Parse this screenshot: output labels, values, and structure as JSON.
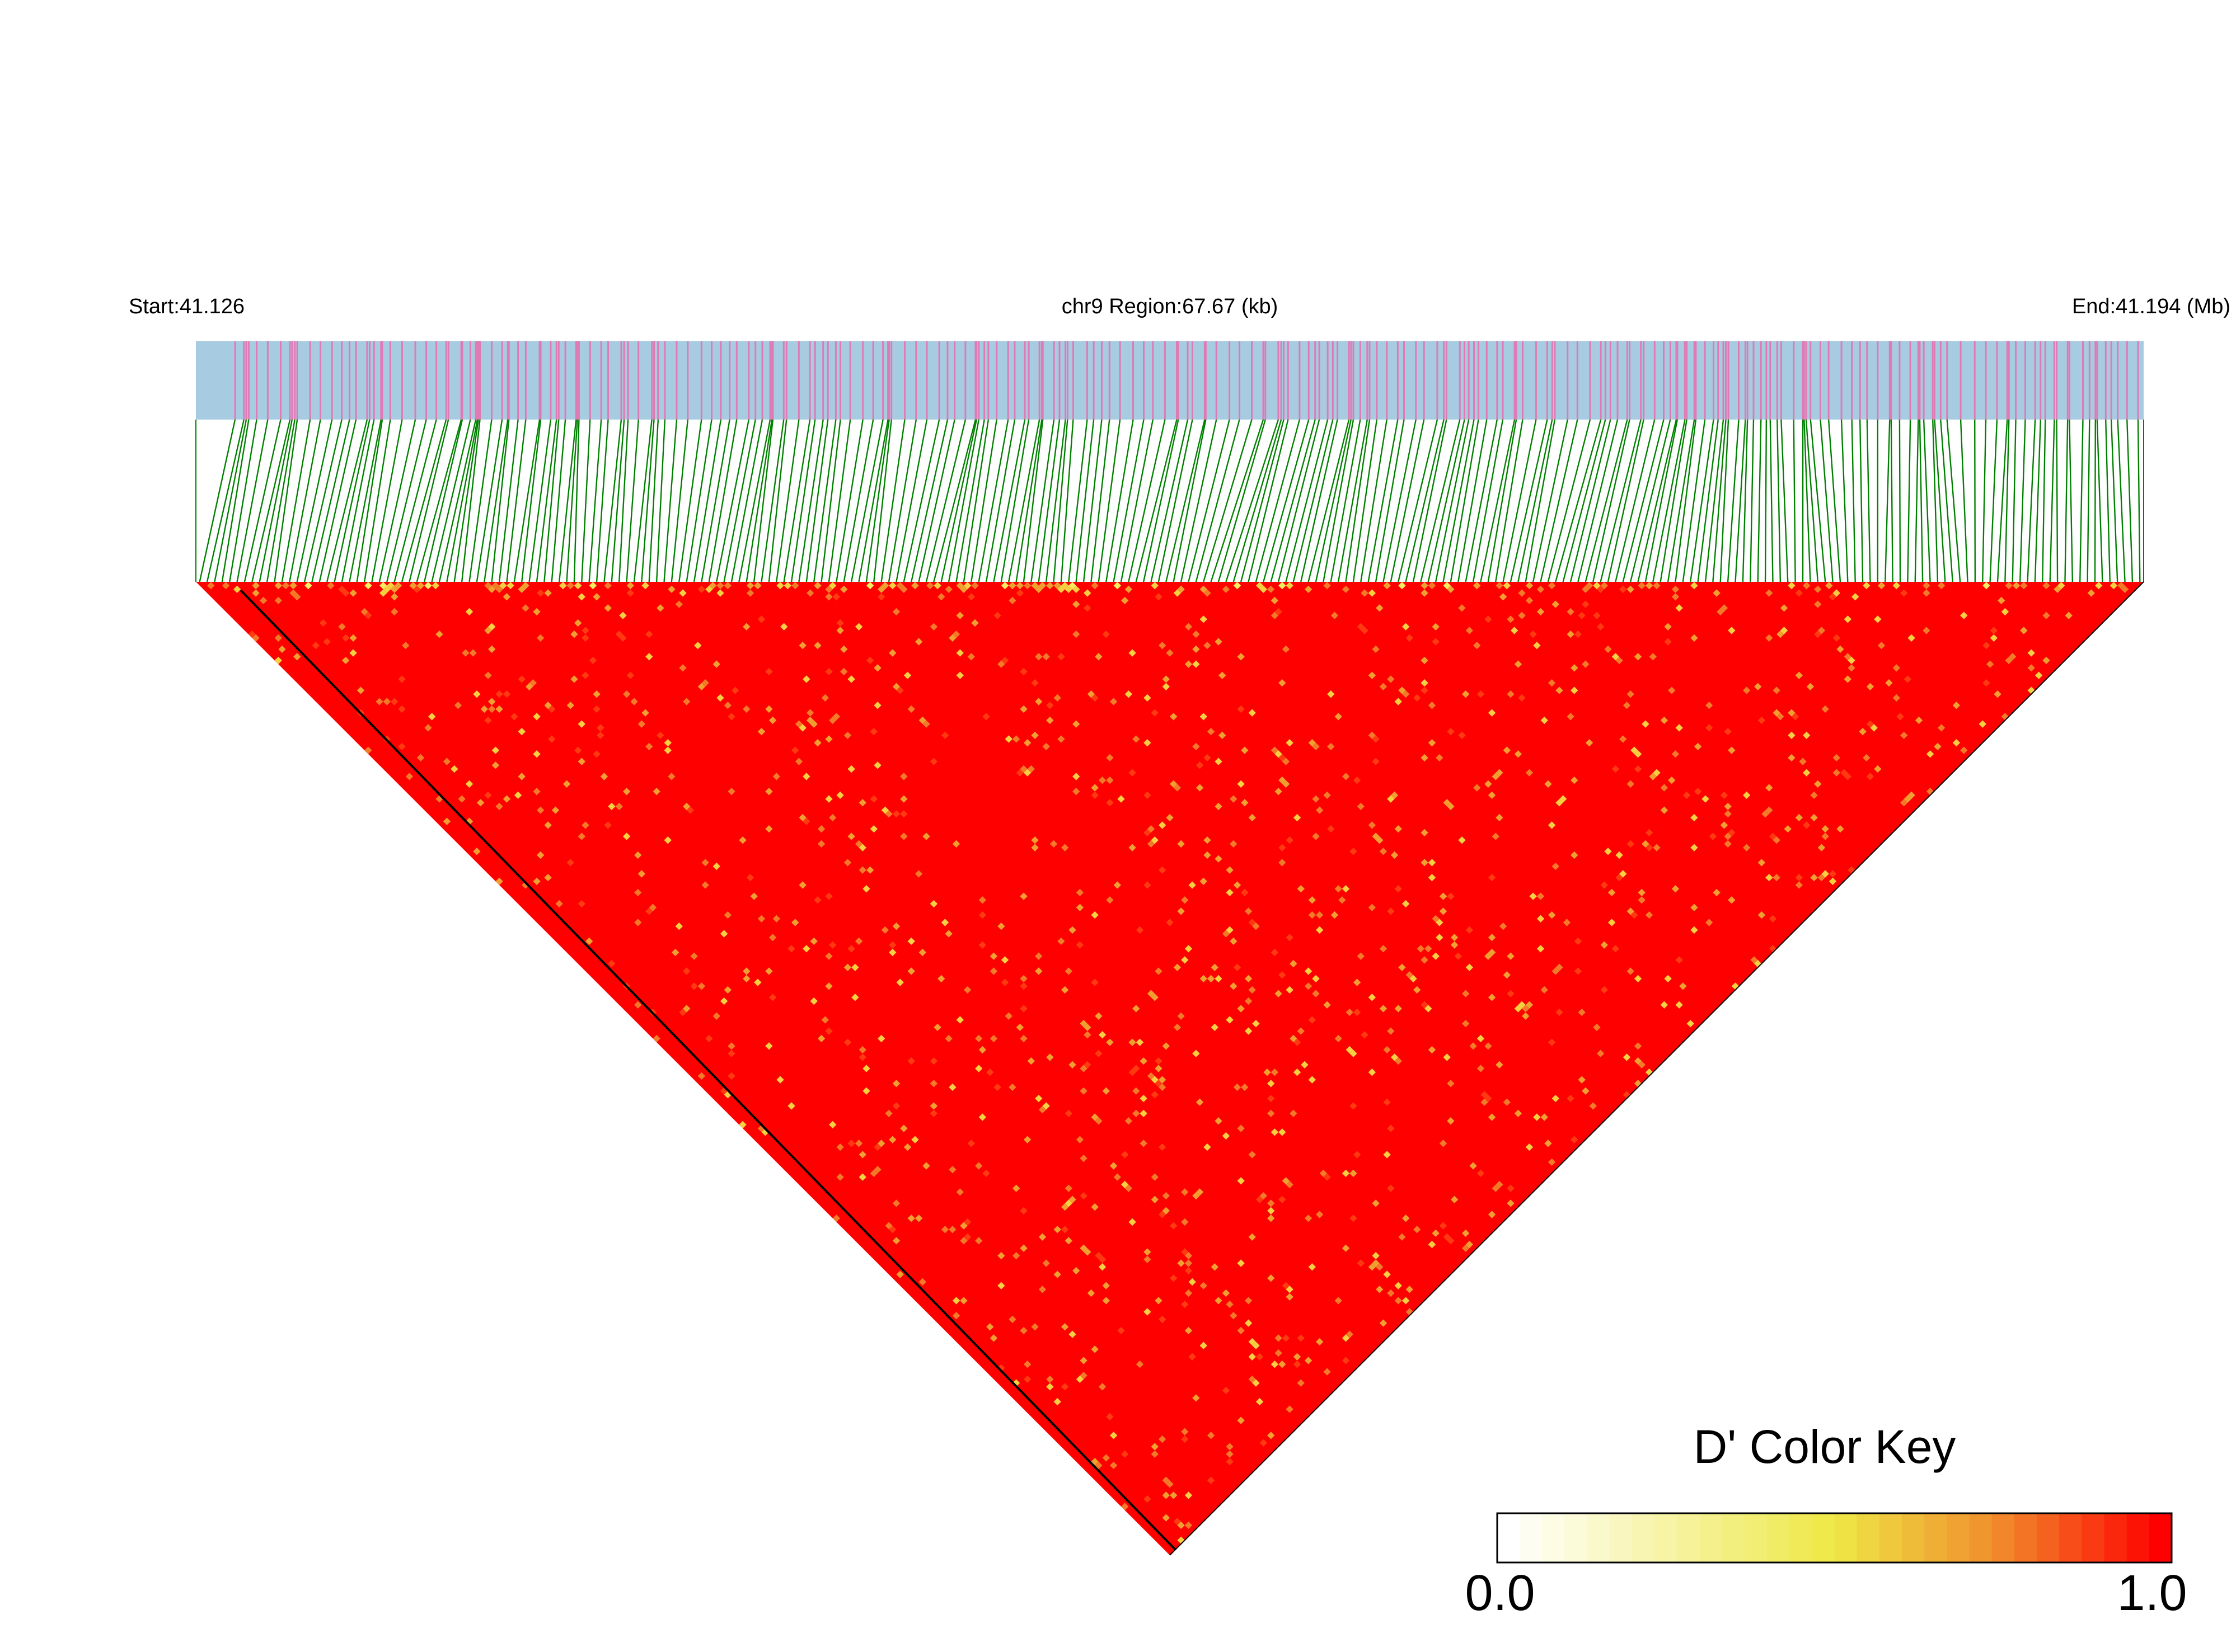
{
  "header": {
    "start_label": "Start:41.126",
    "region_label": "chr9 Region:67.67 (kb)",
    "end_label": "End:41.194 (Mb)"
  },
  "color_key": {
    "title": "D' Color Key",
    "min_label": "0.0",
    "max_label": "1.0",
    "colors": [
      "#ffffff",
      "#f5eb4f",
      "#ee8a2c",
      "#ff0000"
    ]
  },
  "chart_data": {
    "type": "heatmap",
    "title": "",
    "subtitle": "",
    "chromosome": "chr9",
    "region_start_mb": 41.126,
    "region_end_mb": 41.194,
    "region_length_kb": 67.67,
    "measure": "D'",
    "value_range": [
      0.0,
      1.0
    ],
    "snp_count": 260,
    "dominant_value": 1.0,
    "layout_note": "LD triangle: pairwise D' between SNPs, predominantly near 1.0 with scattered lower (orange/yellow) cells",
    "colors": {
      "track_background": "#a7cce2",
      "snp_tick": "#e07ab5",
      "connector": "#008000",
      "high": "#ff0000",
      "mid": "#f0a030",
      "low": "#f5eb4f"
    }
  }
}
